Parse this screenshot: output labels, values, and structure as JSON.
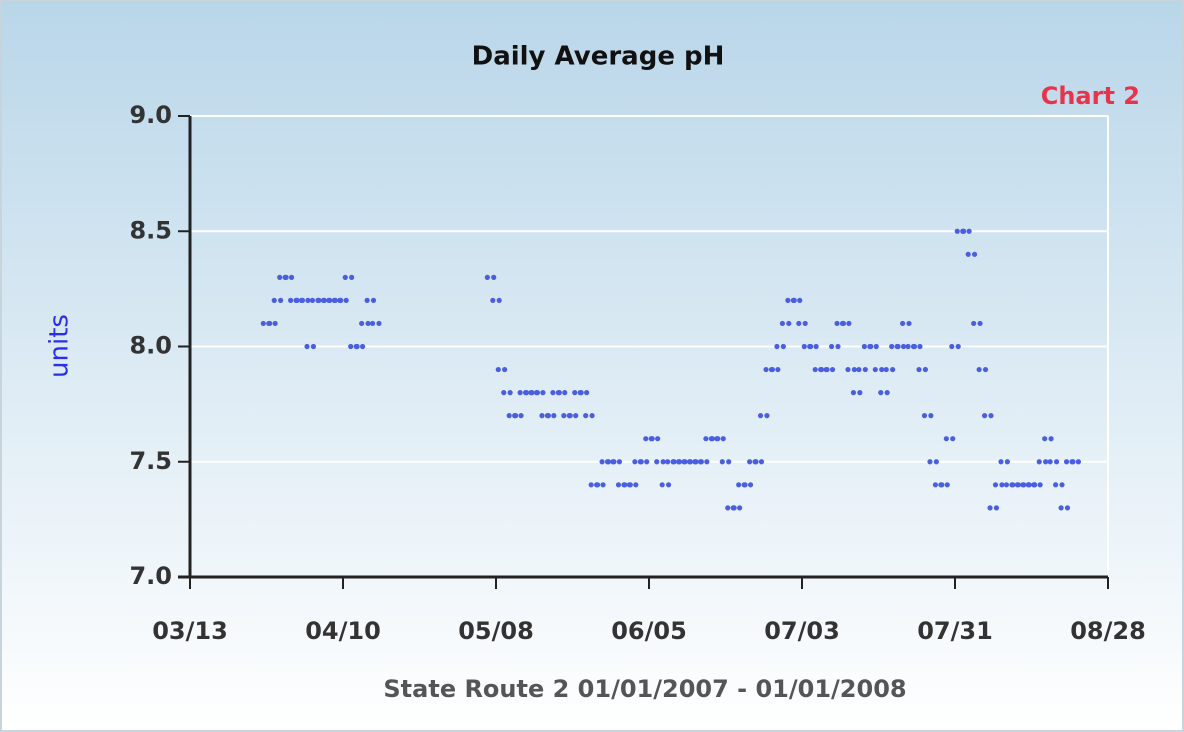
{
  "chart_data": {
    "type": "scatter",
    "title": "Daily Average pH",
    "annotation": "Chart 2",
    "ylabel": "units",
    "xlabel": "State Route 2 01/01/2007 - 01/01/2008",
    "color": "#4a5ee0",
    "grid": true,
    "xlim": [
      "03/13",
      "08/28"
    ],
    "xticks": [
      "03/13",
      "04/10",
      "05/08",
      "06/05",
      "07/03",
      "07/31",
      "08/28"
    ],
    "ylim": [
      7,
      9
    ],
    "yticks": [
      {
        "value": 7,
        "label": "7.0"
      },
      7.5,
      {
        "value": 8,
        "label": "8.0"
      },
      8.5,
      {
        "value": 9,
        "label": "9.0"
      }
    ],
    "x": [
      "03/27",
      "03/28",
      "03/29",
      "03/30",
      "03/31",
      "04/01",
      "04/02",
      "04/03",
      "04/04",
      "04/05",
      "04/06",
      "04/07",
      "04/08",
      "04/09",
      "04/10",
      "04/11",
      "04/12",
      "04/13",
      "04/14",
      "04/15",
      "04/16",
      "05/07",
      "05/08",
      "05/09",
      "05/10",
      "05/11",
      "05/12",
      "05/13",
      "05/14",
      "05/15",
      "05/16",
      "05/17",
      "05/18",
      "05/19",
      "05/20",
      "05/21",
      "05/22",
      "05/23",
      "05/24",
      "05/25",
      "05/26",
      "05/27",
      "05/28",
      "05/29",
      "05/30",
      "05/31",
      "06/01",
      "06/02",
      "06/03",
      "06/04",
      "06/05",
      "06/06",
      "06/07",
      "06/08",
      "06/09",
      "06/10",
      "06/11",
      "06/12",
      "06/13",
      "06/14",
      "06/15",
      "06/16",
      "06/17",
      "06/18",
      "06/19",
      "06/20",
      "06/21",
      "06/22",
      "06/23",
      "06/24",
      "06/25",
      "06/26",
      "06/27",
      "06/28",
      "06/29",
      "06/30",
      "07/01",
      "07/02",
      "07/03",
      "07/04",
      "07/05",
      "07/06",
      "07/07",
      "07/08",
      "07/09",
      "07/10",
      "07/11",
      "07/12",
      "07/13",
      "07/14",
      "07/15",
      "07/16",
      "07/17",
      "07/18",
      "07/19",
      "07/20",
      "07/21",
      "07/22",
      "07/23",
      "07/24",
      "07/25",
      "07/26",
      "07/27",
      "07/28",
      "07/29",
      "07/30",
      "07/31",
      "08/01",
      "08/02",
      "08/03",
      "08/04",
      "08/05",
      "08/06",
      "08/07",
      "08/08",
      "08/09",
      "08/10",
      "08/11",
      "08/12",
      "08/13",
      "08/14",
      "08/15",
      "08/16",
      "08/17",
      "08/18",
      "08/19",
      "08/20",
      "08/21",
      "08/22"
    ],
    "values": [
      8.1,
      8.1,
      8.2,
      8.3,
      8.3,
      8.2,
      8.2,
      8.2,
      8.0,
      8.2,
      8.2,
      8.2,
      8.2,
      8.2,
      8.2,
      8.3,
      8.0,
      8.0,
      8.1,
      8.2,
      8.1,
      8.3,
      8.2,
      7.9,
      7.8,
      7.7,
      7.7,
      7.8,
      7.8,
      7.8,
      7.8,
      7.7,
      7.7,
      7.8,
      7.8,
      7.7,
      7.7,
      7.8,
      7.8,
      7.7,
      7.4,
      7.4,
      7.5,
      7.5,
      7.5,
      7.4,
      7.4,
      7.4,
      7.5,
      7.5,
      7.6,
      7.6,
      7.5,
      7.4,
      7.5,
      7.5,
      7.5,
      7.5,
      7.5,
      7.5,
      7.5,
      7.6,
      7.6,
      7.6,
      7.5,
      7.3,
      7.3,
      7.4,
      7.4,
      7.5,
      7.5,
      7.7,
      7.9,
      7.9,
      8.0,
      8.1,
      8.2,
      8.2,
      8.1,
      8.0,
      8.0,
      7.9,
      7.9,
      7.9,
      8.0,
      8.1,
      8.1,
      7.9,
      7.8,
      7.9,
      8.0,
      8.0,
      7.9,
      7.8,
      7.9,
      8.0,
      8.0,
      8.1,
      8.0,
      8.0,
      7.9,
      7.7,
      7.5,
      7.4,
      7.4,
      7.6,
      8.0,
      8.5,
      8.5,
      8.4,
      8.1,
      7.9,
      7.7,
      7.3,
      7.4,
      7.5,
      7.4,
      7.4,
      7.4,
      7.4,
      7.4,
      7.4,
      7.5,
      7.6,
      7.5,
      7.4,
      7.3,
      7.5,
      7.5
    ]
  }
}
